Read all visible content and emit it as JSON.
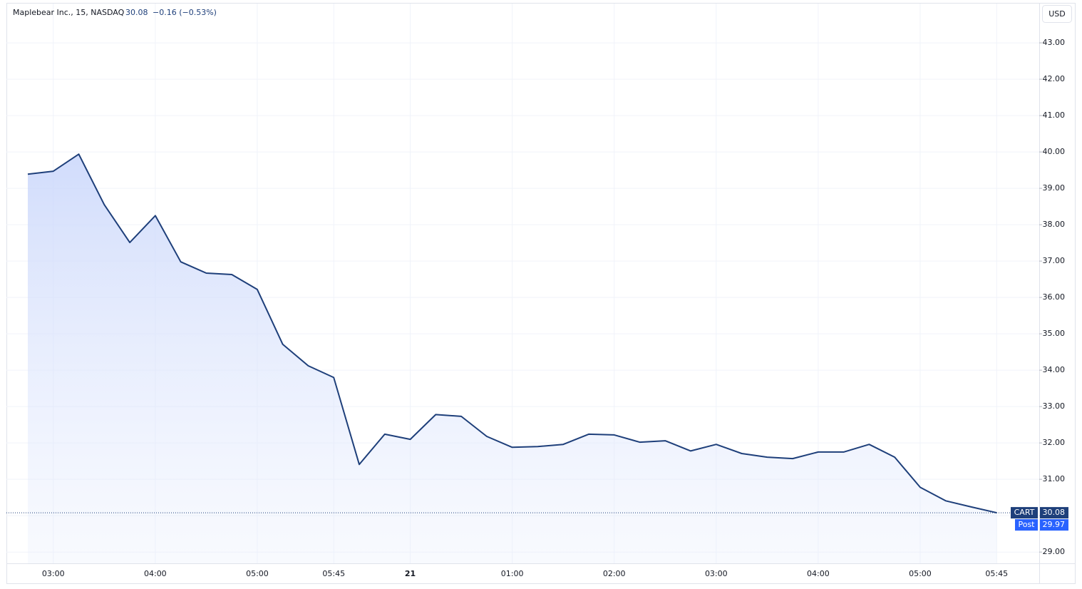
{
  "header": {
    "symbol": "Maplebear Inc., 15, NASDAQ",
    "price": "30.08",
    "change": "−0.16 (−0.53%)"
  },
  "currency": "USD",
  "chart_data": {
    "type": "area",
    "categories": [
      null,
      "03:00",
      null,
      null,
      null,
      "04:00",
      null,
      null,
      null,
      "05:00",
      null,
      null,
      "05:45",
      null,
      null,
      "21",
      null,
      null,
      null,
      "01:00",
      null,
      null,
      null,
      "02:00",
      null,
      null,
      null,
      "03:00",
      null,
      null,
      null,
      "04:00",
      null,
      null,
      null,
      "05:00",
      null,
      null,
      "05:45"
    ],
    "values": [
      39.39,
      39.47,
      39.94,
      38.55,
      37.51,
      38.25,
      36.98,
      36.67,
      36.63,
      36.22,
      34.71,
      34.12,
      33.8,
      31.41,
      32.24,
      32.1,
      32.78,
      32.73,
      32.18,
      31.88,
      31.9,
      31.96,
      32.24,
      32.22,
      32.02,
      32.06,
      31.78,
      31.96,
      31.71,
      31.61,
      31.57,
      31.75,
      31.75,
      31.96,
      31.61,
      30.78,
      30.41,
      30.24,
      30.08
    ],
    "color": "#1e3f7a",
    "ylim": [
      28.69,
      44.08
    ],
    "yticks": [
      {
        "value": 29,
        "label": "29.00"
      },
      {
        "value": 30,
        "label": "30.00"
      },
      {
        "value": 31,
        "label": "31.00"
      },
      {
        "value": 32,
        "label": "32.00"
      },
      {
        "value": 33,
        "label": "33.00"
      },
      {
        "value": 34,
        "label": "34.00"
      },
      {
        "value": 35,
        "label": "35.00"
      },
      {
        "value": 36,
        "label": "36.00"
      },
      {
        "value": 37,
        "label": "37.00"
      },
      {
        "value": 38,
        "label": "38.00"
      },
      {
        "value": 39,
        "label": "39.00"
      },
      {
        "value": 40,
        "label": "40.00"
      },
      {
        "value": 41,
        "label": "41.00"
      },
      {
        "value": 42,
        "label": "42.00"
      },
      {
        "value": 43,
        "label": "43.00"
      }
    ],
    "grid": true,
    "last_label": {
      "name": "CART",
      "value": "30.08"
    },
    "post_label": {
      "name": "Post",
      "value": 29.97
    }
  }
}
